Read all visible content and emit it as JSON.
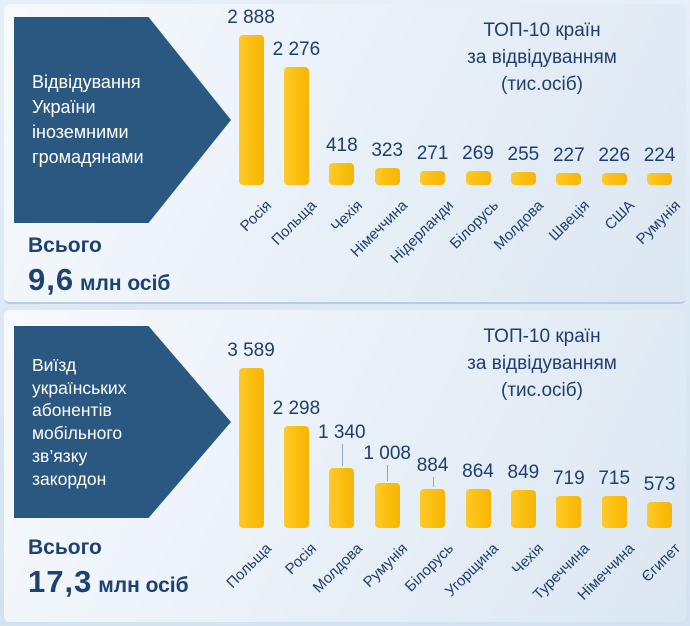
{
  "colors": {
    "bar": "#FBBE0D",
    "arrow_banner": "#2A5880",
    "text_navy": "#1F3E6B",
    "panel_gradient_start": "#F7FAFD",
    "panel_gradient_end": "#DCE7F2",
    "page_background": "#D3E2EF",
    "leader_line": "#93A6BA"
  },
  "panels": [
    {
      "arrow_lines": [
        "Відвідування",
        "України",
        "іноземними",
        "громадянами"
      ],
      "total_label": "Всього",
      "total_value": "9,6",
      "total_unit": "млн осіб"
    },
    {
      "arrow_lines": [
        "Виїзд",
        "українських",
        "абонентів",
        "мобільного",
        "зв’язку",
        "закордон"
      ],
      "total_label": "Всього",
      "total_value": "17,3",
      "total_unit": "млн осіб"
    }
  ],
  "chart_data": [
    {
      "type": "bar",
      "title": "ТОП-10 країн за відвідуванням (тис.осіб)",
      "title_lines": [
        "ТОП-10 країн",
        "за відвідуванням",
        "(тис.осіб)"
      ],
      "categories": [
        "Росія",
        "Польща",
        "Чехія",
        "Німеччина",
        "Нідерланди",
        "Білорусь",
        "Молдова",
        "Швеція",
        "США",
        "Румунія"
      ],
      "values": [
        2888,
        2276,
        418,
        323,
        271,
        269,
        255,
        227,
        226,
        224
      ],
      "value_labels": [
        "2 888",
        "2 276",
        "418",
        "323",
        "271",
        "269",
        "255",
        "227",
        "226",
        "224"
      ],
      "label_raise": [
        0,
        0,
        0,
        0,
        0,
        0,
        0,
        0,
        0,
        0
      ],
      "unit": "тис.осіб",
      "total": "9,6 млн осіб",
      "ylim": [
        0,
        2888
      ],
      "grid": false,
      "legend": false
    },
    {
      "type": "bar",
      "title": "ТОП-10 країн за відвідуванням (тис.осіб)",
      "title_lines": [
        "ТОП-10 країн",
        "за відвідуванням",
        "(тис.осіб)"
      ],
      "categories": [
        "Польща",
        "Росія",
        "Молдова",
        "Румунія",
        "Білорусь",
        "Угорщина",
        "Чехія",
        "Туреччина",
        "Німеччина",
        "Єгипет"
      ],
      "values": [
        3589,
        2298,
        1340,
        1008,
        884,
        864,
        849,
        719,
        715,
        573
      ],
      "value_labels": [
        "3 589",
        "2 298",
        "1 340",
        "1 008",
        "884",
        "864",
        "849",
        "719",
        "715",
        "573"
      ],
      "label_raise": [
        0,
        0,
        18,
        12,
        6,
        0,
        0,
        0,
        0,
        0
      ],
      "unit": "тис.осіб",
      "total": "17,3 млн осіб",
      "ylim": [
        0,
        3589
      ],
      "grid": false,
      "legend": false
    }
  ]
}
